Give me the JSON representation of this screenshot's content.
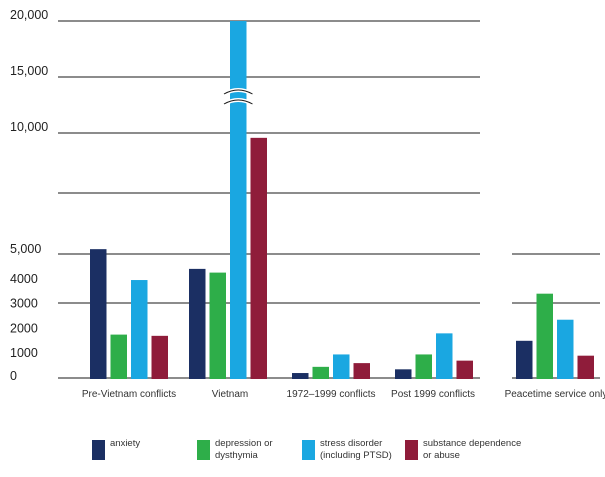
{
  "chart_data": {
    "type": "bar",
    "categories": [
      "Pre-Vietnam conflicts",
      "Vietnam",
      "1972–1999 conflicts",
      "Post 1999 conflicts",
      "Peacetime service only"
    ],
    "series": [
      {
        "name": "anxiety",
        "values": [
          5200,
          4400,
          200,
          350,
          1500
        ]
      },
      {
        "name": "depression or dysthymia",
        "values": [
          1750,
          4250,
          450,
          950,
          3400
        ]
      },
      {
        "name": "stress disorder (including PTSD)",
        "values": [
          3950,
          20000,
          950,
          1800,
          2350
        ]
      },
      {
        "name": "substance dependence or abuse",
        "values": [
          1700,
          9800,
          600,
          700,
          900
        ]
      }
    ],
    "y_tick_labels": [
      "0",
      "1000",
      "2000",
      "3000",
      "4000",
      "5,000",
      "10,000",
      "15,000",
      "20,000"
    ],
    "axis_break": "between 5,000 and 10,000",
    "legend_lines": [
      [
        "anxiety"
      ],
      [
        "depression or",
        "dysthymia"
      ],
      [
        "stress disorder",
        "(including PTSD)"
      ],
      [
        "substance dependence",
        "or abuse"
      ]
    ],
    "legend_position": "bottom",
    "grid": true,
    "colors": [
      "#1b2f63",
      "#2eae49",
      "#1aa7e1",
      "#8f1c3a"
    ]
  }
}
